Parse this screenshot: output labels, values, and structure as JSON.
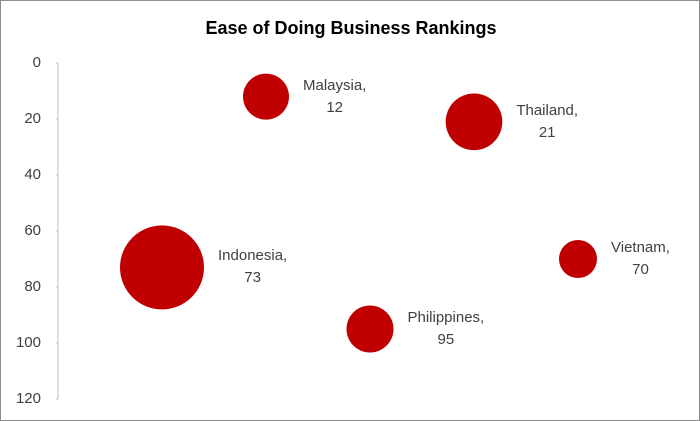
{
  "chart_data": {
    "type": "bubble",
    "title": "Ease of Doing Business Rankings",
    "categories": [
      "Indonesia",
      "Malaysia",
      "Philippines",
      "Thailand",
      "Vietnam"
    ],
    "x": [
      1,
      2,
      3,
      4,
      5
    ],
    "values": [
      73,
      12,
      95,
      21,
      70
    ],
    "sizes": [
      1000,
      300,
      313,
      455,
      205
    ],
    "value_labels": [
      "Indonesia, 73",
      "Malaysia, 12",
      "Philippines, 95",
      "Thailand, 21",
      "Vietnam, 70"
    ],
    "color": "#c00000",
    "xlim": [
      0,
      6
    ],
    "ylim": [
      120,
      0
    ],
    "yreversed": true,
    "yticks": [
      0,
      20,
      40,
      60,
      80,
      100,
      120
    ]
  }
}
